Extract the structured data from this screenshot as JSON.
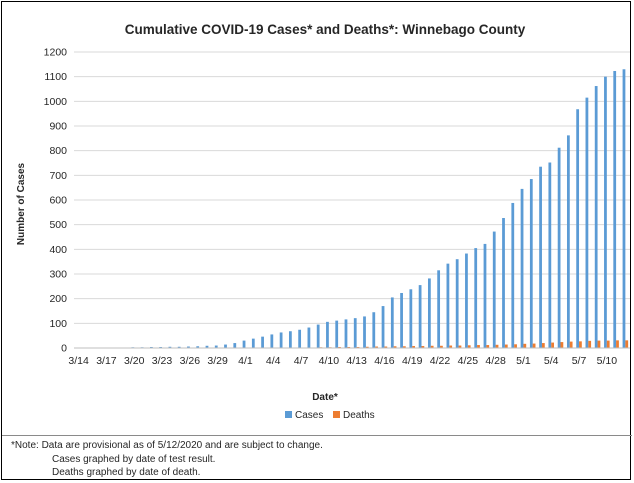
{
  "chart_data": {
    "type": "bar",
    "title": "Cumulative COVID-19 Cases* and Deaths*: Winnebago County",
    "xlabel": "Date*",
    "ylabel": "Number of Cases",
    "ylim": [
      0,
      1200
    ],
    "yticks": [
      0,
      100,
      200,
      300,
      400,
      500,
      600,
      700,
      800,
      900,
      1000,
      1100,
      1200
    ],
    "grid": true,
    "legend_position": "bottom",
    "categories": [
      "3/14",
      "3/15",
      "3/16",
      "3/17",
      "3/18",
      "3/19",
      "3/20",
      "3/21",
      "3/22",
      "3/23",
      "3/24",
      "3/25",
      "3/26",
      "3/27",
      "3/28",
      "3/29",
      "3/30",
      "3/31",
      "4/1",
      "4/2",
      "4/3",
      "4/4",
      "4/5",
      "4/6",
      "4/7",
      "4/8",
      "4/9",
      "4/10",
      "4/11",
      "4/12",
      "4/13",
      "4/14",
      "4/15",
      "4/16",
      "4/17",
      "4/18",
      "4/19",
      "4/20",
      "4/21",
      "4/22",
      "4/23",
      "4/24",
      "4/25",
      "4/26",
      "4/27",
      "4/28",
      "4/29",
      "4/30",
      "5/1",
      "5/2",
      "5/3",
      "5/4",
      "5/5",
      "5/6",
      "5/7",
      "5/8",
      "5/9",
      "5/10",
      "5/11",
      "5/12"
    ],
    "tick_labels": [
      "3/14",
      "3/17",
      "3/20",
      "3/23",
      "3/26",
      "3/29",
      "4/1",
      "4/4",
      "4/7",
      "4/10",
      "4/13",
      "4/16",
      "4/19",
      "4/22",
      "4/25",
      "4/28",
      "5/1",
      "5/4",
      "5/7",
      "5/10"
    ],
    "series": [
      {
        "name": "Cases",
        "color": "#5b9bd5",
        "values": [
          1,
          1,
          1,
          2,
          2,
          2,
          3,
          3,
          4,
          4,
          5,
          5,
          6,
          7,
          9,
          10,
          14,
          20,
          30,
          38,
          46,
          55,
          63,
          68,
          74,
          83,
          95,
          106,
          111,
          116,
          121,
          128,
          145,
          170,
          205,
          223,
          238,
          255,
          282,
          315,
          342,
          360,
          383,
          405,
          422,
          472,
          527,
          588,
          645,
          685,
          735,
          752,
          812,
          862,
          968,
          1015,
          1062,
          1100,
          1123,
          1130
        ]
      },
      {
        "name": "Deaths",
        "color": "#ed7d31",
        "values": [
          0,
          0,
          0,
          0,
          0,
          0,
          0,
          0,
          0,
          0,
          0,
          0,
          0,
          0,
          0,
          0,
          0,
          0,
          0,
          0,
          0,
          1,
          1,
          1,
          2,
          2,
          3,
          3,
          4,
          4,
          4,
          5,
          6,
          6,
          7,
          7,
          8,
          8,
          9,
          9,
          10,
          10,
          11,
          12,
          12,
          13,
          14,
          15,
          17,
          18,
          20,
          22,
          24,
          26,
          27,
          29,
          30,
          30,
          31,
          31
        ]
      }
    ]
  },
  "notes": {
    "line1": "*Note: Data are provisional as of 5/12/2020 and are subject to change.",
    "line2": "Cases graphed by date of test result.",
    "line3": "Deaths graphed by date of death."
  }
}
